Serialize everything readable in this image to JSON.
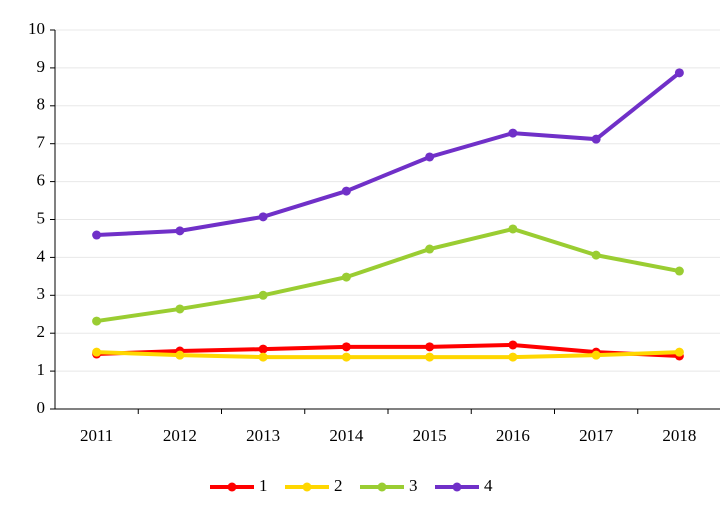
{
  "chart_data": {
    "type": "line",
    "categories": [
      "2011",
      "2012",
      "2013",
      "2014",
      "2015",
      "2016",
      "2017",
      "2018"
    ],
    "series": [
      {
        "name": "1",
        "color": "#ff0000",
        "values": [
          1.45,
          1.53,
          1.58,
          1.64,
          1.64,
          1.69,
          1.5,
          1.4
        ]
      },
      {
        "name": "2",
        "color": "#ffd700",
        "values": [
          1.5,
          1.42,
          1.37,
          1.37,
          1.37,
          1.37,
          1.42,
          1.5
        ]
      },
      {
        "name": "3",
        "color": "#9acd32",
        "values": [
          2.32,
          2.64,
          3.0,
          3.48,
          4.22,
          4.75,
          4.06,
          3.64
        ]
      },
      {
        "name": "4",
        "color": "#7030c8",
        "values": [
          4.59,
          4.7,
          5.07,
          5.75,
          6.65,
          7.28,
          7.12,
          8.87
        ]
      }
    ],
    "ylim": [
      0,
      10
    ],
    "yticks": [
      0,
      1,
      2,
      3,
      4,
      5,
      6,
      7,
      8,
      9,
      10
    ],
    "grid": true,
    "legend": "bottom"
  }
}
